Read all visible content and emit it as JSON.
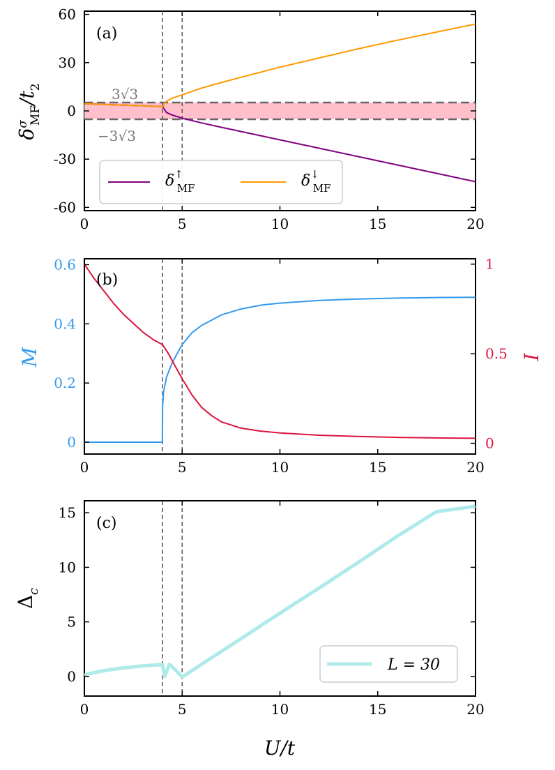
{
  "chart_data": [
    {
      "panel": "(a)",
      "type": "line",
      "ylabel": "δ^σ_MF / t_2",
      "xlim": [
        0,
        20
      ],
      "ylim": [
        -62,
        62
      ],
      "xticks": [
        0,
        5,
        10,
        15,
        20
      ],
      "yticks": [
        60,
        30,
        0,
        -30,
        -60
      ],
      "ytick_labels": [
        "60",
        "30",
        "0",
        "-30",
        "-60"
      ],
      "vlines": [
        4,
        5
      ],
      "band": {
        "ymin": -5.196,
        "ymax": 5.196,
        "color": "#ffc0cb"
      },
      "band_labels": {
        "upper": "3√3",
        "lower": "−3√3"
      },
      "legend": {
        "position": "lower-left",
        "ncol": 2
      },
      "series": [
        {
          "name": "δ↑MF",
          "color": "#800080",
          "x": [
            0,
            1,
            2,
            3,
            4,
            4.2,
            4.5,
            5,
            6,
            7,
            8,
            9,
            10,
            12,
            14,
            16,
            18,
            20
          ],
          "y": [
            4.5,
            4.0,
            3.6,
            3.2,
            2.6,
            -1.0,
            -2.6,
            -4.5,
            -7.5,
            -10.2,
            -12.8,
            -15.4,
            -18.0,
            -23.2,
            -28.4,
            -33.6,
            -38.8,
            -44.0
          ]
        },
        {
          "name": "δ↓MF",
          "color": "#ff9900",
          "x": [
            0,
            1,
            2,
            3,
            4,
            4.2,
            4.5,
            5,
            6,
            7,
            8,
            9,
            10,
            12,
            14,
            16,
            18,
            20
          ],
          "y": [
            4.5,
            4.0,
            3.6,
            3.2,
            2.6,
            6.0,
            7.9,
            10.0,
            14.2,
            17.6,
            20.9,
            24.0,
            27.2,
            32.9,
            38.6,
            43.9,
            49.0,
            54.0
          ]
        }
      ]
    },
    {
      "panel": "(b)",
      "type": "line",
      "ylabel_left": "M",
      "ylabel_right": "I",
      "xlim": [
        0,
        20
      ],
      "ylim_left": [
        -0.04,
        0.62
      ],
      "ylim_right": [
        -0.06,
        1.03
      ],
      "xticks": [
        0,
        5,
        10,
        15,
        20
      ],
      "yticks_left": [
        0,
        0.2,
        0.4,
        0.6
      ],
      "ytick_labels_left": [
        "0",
        "0.2",
        "0.4",
        "0.6"
      ],
      "yticks_right": [
        0,
        0.5,
        1
      ],
      "ytick_labels_right": [
        "0",
        "0.5",
        "1"
      ],
      "vlines": [
        4,
        5
      ],
      "series": [
        {
          "axis": "left",
          "color": "#3399ee",
          "x": [
            0,
            1,
            2,
            3,
            3.99,
            4.0,
            4.05,
            4.2,
            4.5,
            5,
            5.5,
            6,
            7,
            8,
            9,
            10,
            12,
            14,
            16,
            18,
            20
          ],
          "y": [
            0,
            0,
            0,
            0,
            0,
            0.12,
            0.17,
            0.22,
            0.27,
            0.33,
            0.37,
            0.395,
            0.43,
            0.45,
            0.463,
            0.47,
            0.479,
            0.484,
            0.487,
            0.489,
            0.49
          ]
        },
        {
          "axis": "right",
          "color": "#dc143c",
          "x": [
            0,
            0.5,
            1,
            1.5,
            2,
            2.5,
            3,
            3.5,
            4,
            4.3,
            4.6,
            5,
            5.5,
            6,
            6.5,
            7,
            8,
            9,
            10,
            12,
            14,
            16,
            18,
            20
          ],
          "y": [
            1.0,
            0.92,
            0.85,
            0.78,
            0.72,
            0.67,
            0.62,
            0.58,
            0.55,
            0.5,
            0.44,
            0.36,
            0.27,
            0.2,
            0.155,
            0.12,
            0.085,
            0.068,
            0.058,
            0.045,
            0.038,
            0.033,
            0.03,
            0.028
          ]
        }
      ]
    },
    {
      "panel": "(c)",
      "type": "line",
      "ylabel": "Δ_c",
      "xlabel": "U/t",
      "xlim": [
        0,
        20
      ],
      "ylim": [
        -1.8,
        16.1
      ],
      "xticks": [
        0,
        5,
        10,
        15,
        20
      ],
      "yticks": [
        0,
        5,
        10,
        15
      ],
      "ytick_labels": [
        "0",
        "5",
        "10",
        "15"
      ],
      "vlines": [
        4,
        5
      ],
      "legend": {
        "position": "lower-right"
      },
      "series": [
        {
          "name": "L = 30",
          "color": "#aeeaea",
          "x": [
            0,
            0.5,
            1,
            1.5,
            2,
            2.5,
            3,
            3.5,
            4,
            4.1,
            4.35,
            4.6,
            5,
            6,
            8,
            10,
            12,
            14,
            16,
            18,
            20
          ],
          "y": [
            0.15,
            0.35,
            0.52,
            0.66,
            0.78,
            0.88,
            0.96,
            1.03,
            1.08,
            0.0,
            1.1,
            0.7,
            -0.05,
            1.12,
            3.45,
            5.8,
            8.1,
            10.45,
            12.85,
            15.1,
            15.6
          ]
        }
      ]
    }
  ],
  "labels": {
    "panel_a": "(a)",
    "panel_b": "(b)",
    "panel_c": "(c)",
    "band_upper": "3√3",
    "band_lower": "−3√3",
    "legend_a_up": "δ",
    "legend_a_up_sup": "↑",
    "legend_a_up_sub": "MF",
    "legend_a_down": "δ",
    "legend_a_down_sup": "↓",
    "legend_a_down_sub": "MF",
    "ylabel_a_main": "δ",
    "ylabel_a_sup": "σ",
    "ylabel_a_sub": "MF",
    "ylabel_a_tail": "/t",
    "ylabel_a_tail_sub": "2",
    "ylabel_b_left": "M",
    "ylabel_b_right": "I",
    "ylabel_c_main": "Δ",
    "ylabel_c_sub": "c",
    "xlabel": "U/t",
    "legend_c": "L = 30"
  },
  "xtick_labels": [
    "0",
    "5",
    "10",
    "15",
    "20"
  ]
}
